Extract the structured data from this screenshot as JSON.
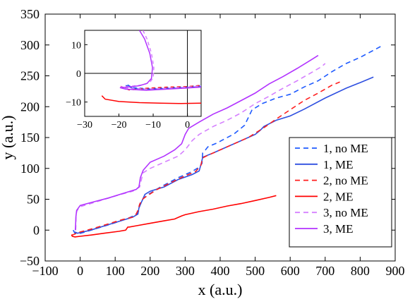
{
  "chart_data": [
    {
      "type": "line",
      "xlabel": "x (a.u.)",
      "ylabel": "y (a.u.)",
      "xlim": [
        -100,
        900
      ],
      "ylim": [
        -50,
        350
      ],
      "xticks": [
        -100,
        0,
        100,
        200,
        300,
        400,
        500,
        600,
        700,
        800,
        900
      ],
      "yticks": [
        -50,
        0,
        50,
        100,
        150,
        200,
        250,
        300,
        350
      ],
      "x_tick_labels": [
        "−100",
        "0",
        "100",
        "200",
        "300",
        "400",
        "500",
        "600",
        "700",
        "800",
        "900"
      ],
      "y_tick_labels": [
        "−50",
        "0",
        "50",
        "100",
        "150",
        "200",
        "250",
        "300",
        "350"
      ],
      "grid": false,
      "legend_position": "lower-right",
      "series": [
        {
          "name": "1, no ME",
          "color": "#1f5bff",
          "dashed": true,
          "points": [
            [
              -20,
              0
            ],
            [
              -15,
              -5
            ],
            [
              -5,
              -6
            ],
            [
              20,
              -2
            ],
            [
              60,
              5
            ],
            [
              100,
              12
            ],
            [
              140,
              20
            ],
            [
              160,
              25
            ],
            [
              168,
              32
            ],
            [
              170,
              42
            ],
            [
              176,
              47
            ],
            [
              180,
              51
            ],
            [
              195,
              58
            ],
            [
              230,
              70
            ],
            [
              280,
              85
            ],
            [
              320,
              95
            ],
            [
              340,
              102
            ],
            [
              348,
              108
            ],
            [
              350,
              125
            ],
            [
              358,
              130
            ],
            [
              365,
              135
            ],
            [
              390,
              141
            ],
            [
              440,
              156
            ],
            [
              470,
              170
            ],
            [
              492,
              196
            ],
            [
              500,
              198
            ],
            [
              520,
              205
            ],
            [
              560,
              214
            ],
            [
              600,
              220
            ],
            [
              640,
              232
            ],
            [
              680,
              242
            ],
            [
              720,
              257
            ],
            [
              760,
              270
            ],
            [
              800,
              280
            ],
            [
              860,
              298
            ]
          ]
        },
        {
          "name": "1, ME",
          "color": "#2e4fe0",
          "dashed": false,
          "points": [
            [
              -15,
              -3
            ],
            [
              -8,
              -5
            ],
            [
              0,
              -4
            ],
            [
              30,
              0
            ],
            [
              70,
              7
            ],
            [
              110,
              14
            ],
            [
              150,
              21
            ],
            [
              165,
              26
            ],
            [
              168,
              36
            ],
            [
              174,
              44
            ],
            [
              185,
              58
            ],
            [
              200,
              63
            ],
            [
              240,
              70
            ],
            [
              280,
              82
            ],
            [
              320,
              90
            ],
            [
              340,
              96
            ],
            [
              346,
              108
            ],
            [
              350,
              118
            ],
            [
              358,
              120
            ],
            [
              380,
              125
            ],
            [
              420,
              135
            ],
            [
              460,
              145
            ],
            [
              500,
              155
            ],
            [
              515,
              162
            ],
            [
              525,
              168
            ],
            [
              560,
              178
            ],
            [
              600,
              185
            ],
            [
              640,
              196
            ],
            [
              700,
              214
            ],
            [
              760,
              230
            ],
            [
              800,
              239
            ],
            [
              838,
              248
            ]
          ]
        },
        {
          "name": "2, no ME",
          "color": "#ff1f1f",
          "dashed": true,
          "points": [
            [
              -25,
              -8
            ],
            [
              -18,
              -7
            ],
            [
              -10,
              -5
            ],
            [
              0,
              -3
            ],
            [
              40,
              3
            ],
            [
              80,
              10
            ],
            [
              120,
              17
            ],
            [
              150,
              21
            ],
            [
              160,
              26
            ],
            [
              165,
              32
            ],
            [
              170,
              42
            ],
            [
              178,
              50
            ],
            [
              190,
              55
            ],
            [
              220,
              66
            ],
            [
              270,
              80
            ],
            [
              300,
              88
            ],
            [
              330,
              95
            ],
            [
              345,
              105
            ],
            [
              350,
              117
            ],
            [
              360,
              120
            ],
            [
              400,
              130
            ],
            [
              440,
              140
            ],
            [
              480,
              150
            ],
            [
              500,
              157
            ],
            [
              530,
              168
            ],
            [
              560,
              180
            ],
            [
              600,
              195
            ],
            [
              640,
              210
            ],
            [
              680,
              222
            ],
            [
              720,
              235
            ],
            [
              742,
              240
            ]
          ]
        },
        {
          "name": "2, ME",
          "color": "#ff0000",
          "dashed": false,
          "points": [
            [
              -25,
              -8
            ],
            [
              -22,
              -10
            ],
            [
              -15,
              -11
            ],
            [
              0,
              -10
            ],
            [
              30,
              -8
            ],
            [
              70,
              -5
            ],
            [
              110,
              -2
            ],
            [
              130,
              0
            ],
            [
              136,
              5
            ],
            [
              140,
              5
            ],
            [
              160,
              7
            ],
            [
              200,
              11
            ],
            [
              240,
              15
            ],
            [
              270,
              18
            ],
            [
              290,
              23
            ],
            [
              300,
              25
            ],
            [
              340,
              30
            ],
            [
              380,
              34
            ],
            [
              420,
              39
            ],
            [
              460,
              43
            ],
            [
              500,
              48
            ],
            [
              540,
              53
            ],
            [
              560,
              56
            ]
          ]
        },
        {
          "name": "3, no ME",
          "color": "#d580ff",
          "dashed": true,
          "points": [
            [
              -13,
              0
            ],
            [
              -12,
              10
            ],
            [
              -12,
              20
            ],
            [
              -10,
              30
            ],
            [
              -5,
              35
            ],
            [
              0,
              38
            ],
            [
              30,
              43
            ],
            [
              70,
              50
            ],
            [
              110,
              57
            ],
            [
              150,
              63
            ],
            [
              170,
              70
            ],
            [
              175,
              82
            ],
            [
              180,
              93
            ],
            [
              200,
              100
            ],
            [
              240,
              110
            ],
            [
              280,
              120
            ],
            [
              300,
              130
            ],
            [
              320,
              145
            ],
            [
              340,
              155
            ],
            [
              380,
              168
            ],
            [
              420,
              178
            ],
            [
              460,
              190
            ],
            [
              500,
              205
            ],
            [
              540,
              217
            ],
            [
              580,
              230
            ],
            [
              620,
              242
            ],
            [
              660,
              255
            ],
            [
              690,
              265
            ],
            [
              700,
              270
            ]
          ]
        },
        {
          "name": "3, ME",
          "color": "#b233ff",
          "dashed": false,
          "points": [
            [
              -14,
              0
            ],
            [
              -13,
              10
            ],
            [
              -12,
              22
            ],
            [
              -10,
              32
            ],
            [
              -5,
              36
            ],
            [
              0,
              40
            ],
            [
              40,
              46
            ],
            [
              80,
              52
            ],
            [
              120,
              59
            ],
            [
              160,
              66
            ],
            [
              168,
              70
            ],
            [
              172,
              85
            ],
            [
              180,
              97
            ],
            [
              200,
              110
            ],
            [
              240,
              120
            ],
            [
              270,
              130
            ],
            [
              290,
              140
            ],
            [
              300,
              155
            ],
            [
              310,
              165
            ],
            [
              340,
              175
            ],
            [
              380,
              188
            ],
            [
              420,
              198
            ],
            [
              460,
              210
            ],
            [
              500,
              222
            ],
            [
              540,
              237
            ],
            [
              580,
              249
            ],
            [
              620,
              262
            ],
            [
              660,
              276
            ],
            [
              680,
              283
            ]
          ]
        }
      ]
    },
    {
      "type": "line",
      "inset": true,
      "xlim": [
        -30,
        4
      ],
      "ylim": [
        -15,
        15
      ],
      "xticks": [
        -30,
        -20,
        -10,
        0
      ],
      "yticks": [
        -10,
        0,
        10
      ],
      "x_tick_labels": [
        "−30",
        "−20",
        "−10",
        "0"
      ],
      "y_tick_labels": [
        "−10",
        "0",
        "10"
      ],
      "zero_lines": true,
      "series": [
        {
          "name": "1, no ME",
          "color": "#1f5bff",
          "dashed": true,
          "points": [
            [
              -17.5,
              -4.0
            ],
            [
              -16.0,
              -5.0
            ],
            [
              -12.0,
              -5.3
            ],
            [
              -6.0,
              -5.0
            ],
            [
              0.0,
              -4.6
            ],
            [
              4.0,
              -4.2
            ]
          ]
        },
        {
          "name": "1, ME",
          "color": "#2e4fe0",
          "dashed": false,
          "points": [
            [
              -18.0,
              -4.2
            ],
            [
              -16.0,
              -5.2
            ],
            [
              -12.0,
              -5.5
            ],
            [
              -6.0,
              -5.3
            ],
            [
              0.0,
              -5.0
            ],
            [
              4.0,
              -4.6
            ]
          ]
        },
        {
          "name": "2, no ME",
          "color": "#ff1f1f",
          "dashed": true,
          "points": [
            [
              -19.5,
              -4.5
            ],
            [
              -17.0,
              -5.8
            ],
            [
              -12.0,
              -5.2
            ],
            [
              -6.0,
              -4.8
            ],
            [
              0.0,
              -4.6
            ],
            [
              4.0,
              -4.2
            ]
          ]
        },
        {
          "name": "2, ME",
          "color": "#ff0000",
          "dashed": false,
          "points": [
            [
              -25.0,
              -7.8
            ],
            [
              -24.0,
              -9.0
            ],
            [
              -20.0,
              -9.8
            ],
            [
              -14.0,
              -10.2
            ],
            [
              -8.0,
              -10.4
            ],
            [
              -2.0,
              -10.5
            ],
            [
              4.0,
              -10.4
            ]
          ]
        },
        {
          "name": "3, no ME",
          "color": "#d580ff",
          "dashed": true,
          "points": [
            [
              -13.0,
              15.0
            ],
            [
              -11.8,
              12.0
            ],
            [
              -10.5,
              7.0
            ],
            [
              -9.8,
              2.0
            ],
            [
              -10.0,
              -1.5
            ],
            [
              -11.0,
              -3.2
            ],
            [
              -13.0,
              -4.0
            ],
            [
              -17.0,
              -4.6
            ],
            [
              -19.5,
              -4.7
            ],
            [
              -18.0,
              -5.2
            ],
            [
              -12.0,
              -5.5
            ],
            [
              -6.0,
              -5.2
            ],
            [
              0.0,
              -4.8
            ],
            [
              4.0,
              -4.4
            ]
          ]
        },
        {
          "name": "3, ME",
          "color": "#b233ff",
          "dashed": false,
          "points": [
            [
              -14.0,
              15.0
            ],
            [
              -12.5,
              12.0
            ],
            [
              -11.0,
              7.0
            ],
            [
              -10.2,
              2.0
            ],
            [
              -10.5,
              -1.8
            ],
            [
              -11.8,
              -3.5
            ],
            [
              -14.0,
              -4.3
            ],
            [
              -17.5,
              -4.8
            ],
            [
              -19.7,
              -5.0
            ],
            [
              -18.0,
              -5.5
            ],
            [
              -12.0,
              -5.9
            ],
            [
              -6.0,
              -5.5
            ],
            [
              0.0,
              -5.1
            ],
            [
              4.0,
              -4.8
            ]
          ]
        }
      ]
    }
  ]
}
